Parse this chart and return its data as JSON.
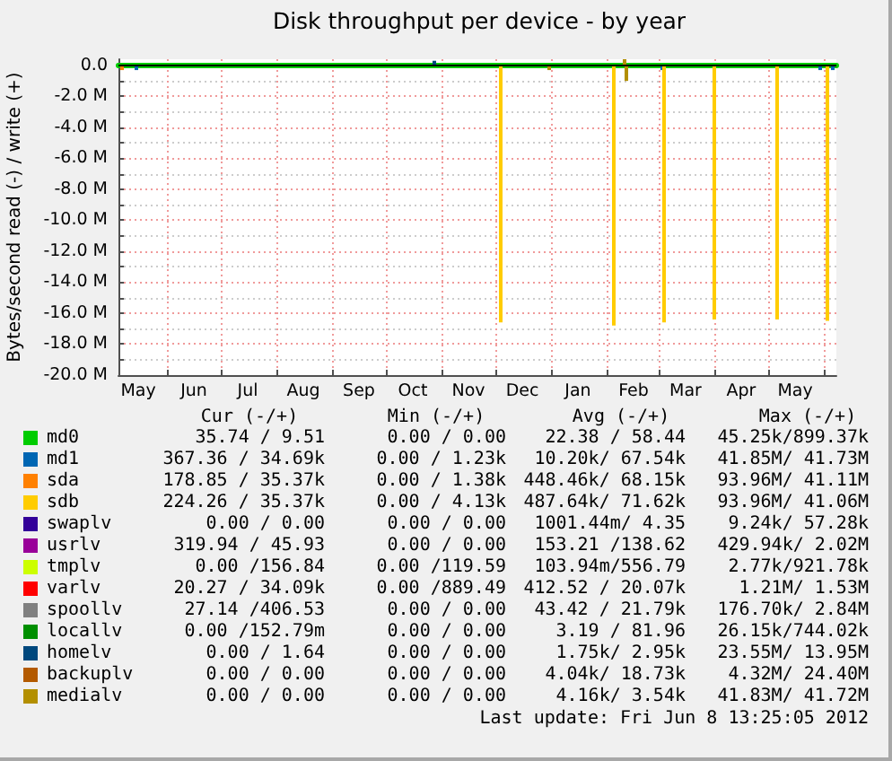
{
  "chart_data": {
    "type": "line",
    "title": "Disk throughput per device - by year",
    "ylabel": "Bytes/second read (-) / write (+)",
    "xlim": [
      "2011-05-05",
      "2012-06-08"
    ],
    "xticks": [
      {
        "value": "2011-05-16",
        "label": "May"
      },
      {
        "value": "2011-06-01",
        "label": null
      },
      {
        "value": "2011-06-16",
        "label": "Jun"
      },
      {
        "value": "2011-07-01",
        "label": null
      },
      {
        "value": "2011-07-16",
        "label": "Jul"
      },
      {
        "value": "2011-08-01",
        "label": null
      },
      {
        "value": "2011-08-16",
        "label": "Aug"
      },
      {
        "value": "2011-09-01",
        "label": null
      },
      {
        "value": "2011-09-16",
        "label": "Sep"
      },
      {
        "value": "2011-10-01",
        "label": null
      },
      {
        "value": "2011-10-16",
        "label": "Oct"
      },
      {
        "value": "2011-11-01",
        "label": null
      },
      {
        "value": "2011-11-16",
        "label": "Nov"
      },
      {
        "value": "2011-12-01",
        "label": null
      },
      {
        "value": "2011-12-16",
        "label": "Dec"
      },
      {
        "value": "2012-01-01",
        "label": null
      },
      {
        "value": "2012-01-16",
        "label": "Jan"
      },
      {
        "value": "2012-02-01",
        "label": null
      },
      {
        "value": "2012-02-16",
        "label": "Feb"
      },
      {
        "value": "2012-03-01",
        "label": null
      },
      {
        "value": "2012-03-16",
        "label": "Mar"
      },
      {
        "value": "2012-04-01",
        "label": null
      },
      {
        "value": "2012-04-16",
        "label": "Apr"
      },
      {
        "value": "2012-05-01",
        "label": null
      },
      {
        "value": "2012-05-16",
        "label": "May"
      },
      {
        "value": "2012-06-01",
        "label": null
      }
    ],
    "ylim": [
      -20000000,
      400000
    ],
    "yticks": [
      {
        "value": -20000000,
        "label": "-20.0 M"
      },
      {
        "value": -19000000,
        "label": null
      },
      {
        "value": -18000000,
        "label": "-18.0 M"
      },
      {
        "value": -17000000,
        "label": null
      },
      {
        "value": -16000000,
        "label": "-16.0 M"
      },
      {
        "value": -15000000,
        "label": null
      },
      {
        "value": -14000000,
        "label": "-14.0 M"
      },
      {
        "value": -13000000,
        "label": null
      },
      {
        "value": -12000000,
        "label": "-12.0 M"
      },
      {
        "value": -11000000,
        "label": null
      },
      {
        "value": -10000000,
        "label": "-10.0 M"
      },
      {
        "value": -9000000,
        "label": null
      },
      {
        "value": -8000000,
        "label": "-8.0 M"
      },
      {
        "value": -7000000,
        "label": null
      },
      {
        "value": -6000000,
        "label": "-6.0 M"
      },
      {
        "value": -5000000,
        "label": null
      },
      {
        "value": -4000000,
        "label": "-4.0 M"
      },
      {
        "value": -3000000,
        "label": null
      },
      {
        "value": -2000000,
        "label": "-2.0 M"
      },
      {
        "value": -1000000,
        "label": null
      },
      {
        "value": 0,
        "label": "0.0"
      }
    ],
    "grid": true,
    "legend": "bottom left",
    "marker": "none",
    "ref_lines": [
      {
        "axis": "y",
        "value": 0,
        "color": "#000000"
      }
    ],
    "series": [
      {
        "name": "md0",
        "color": "#00cc00",
        "x": [
          "2011-05-05",
          "2012-06-08"
        ],
        "values": [
          0,
          0
        ]
      },
      {
        "name": "md1",
        "type": "bar",
        "color": "#0066b3",
        "x": [
          "2011-05-15",
          "2012-03-03",
          "2012-05-30",
          "2012-06-06"
        ],
        "values": [
          -300000,
          -300000,
          -300000,
          -300000
        ]
      },
      {
        "name": "sda",
        "type": "bar",
        "color": "#ff8000",
        "x": [
          "2011-05-07"
        ],
        "values": [
          -300000
        ]
      },
      {
        "name": "sdb",
        "type": "bar",
        "color": "#ffcc00",
        "x": [
          "2011-12-04",
          "2012-02-05",
          "2012-03-04",
          "2012-04-01",
          "2012-05-06",
          "2012-06-03"
        ],
        "values": [
          -16600000,
          -16800000,
          -16600000,
          -16400000,
          -16400000,
          -16500000
        ]
      },
      {
        "name": "swaplv",
        "color": "#330099"
      },
      {
        "name": "usrlv",
        "color": "#990099"
      },
      {
        "name": "tmplv",
        "color": "#ccff00"
      },
      {
        "name": "varlv",
        "color": "#ff0000"
      },
      {
        "name": "spoollv",
        "color": "#808080"
      },
      {
        "name": "locallv",
        "color": "#008f00"
      },
      {
        "name": "homelv",
        "type": "bar",
        "color": "#00487d",
        "x": [
          "2011-10-28"
        ],
        "values": [
          300000
        ]
      },
      {
        "name": "backuplv",
        "color": "#b35a00"
      },
      {
        "name": "medialv",
        "type": "bar",
        "color": "#b38f00",
        "x": [
          "2011-12-31",
          "2012-02-11",
          "2012-02-12"
        ],
        "values": [
          -300000,
          400000,
          -1000000
        ]
      }
    ],
    "annotations": [
      "Cur (-/+)",
      "Min (-/+)",
      "Avg (-/+)",
      "Max (-/+)",
      "35.74 / 9.51",
      "0.00 / 0.00",
      "22.38 / 58.44",
      "45.25k/899.37k",
      "367.36 / 34.69k",
      "0.00 / 1.23k",
      "10.20k/ 67.54k",
      "41.85M/ 41.73M",
      "178.85 / 35.37k",
      "0.00 / 1.38k",
      "448.46k/ 68.15k",
      "93.96M/ 41.11M",
      "224.26 / 35.37k",
      "0.00 / 4.13k",
      "487.64k/ 71.62k",
      "93.96M/ 41.06M",
      "0.00 / 0.00",
      "0.00 / 0.00",
      "1001.44m/ 4.35",
      "9.24k/ 57.28k",
      "319.94 / 45.93",
      "0.00 / 0.00",
      "153.21 /138.62",
      "429.94k/ 2.02M",
      "0.00 /156.84",
      "0.00 /119.59",
      "103.94m/556.79",
      "2.77k/921.78k",
      "20.27 / 34.09k",
      "0.00 /889.49",
      "412.52 / 20.07k",
      "1.21M/ 1.53M",
      "27.14 /406.53",
      "0.00 / 0.00",
      "43.42 / 21.79k",
      "176.70k/ 2.84M",
      "0.00 /152.79m",
      "0.00 / 0.00",
      "3.19 / 81.96",
      "26.15k/744.02k",
      "0.00 / 1.64",
      "0.00 / 0.00",
      "1.75k/ 2.95k",
      "23.55M/ 13.95M",
      "0.00 / 0.00",
      "0.00 / 0.00",
      "4.04k/ 18.73k",
      "4.32M/ 24.40M",
      "0.00 / 0.00",
      "0.00 / 0.00",
      "4.16k/ 3.54k",
      "41.83M/ 41.72M",
      "Last update: Fri Jun 8 13:25:05 2012"
    ]
  }
}
